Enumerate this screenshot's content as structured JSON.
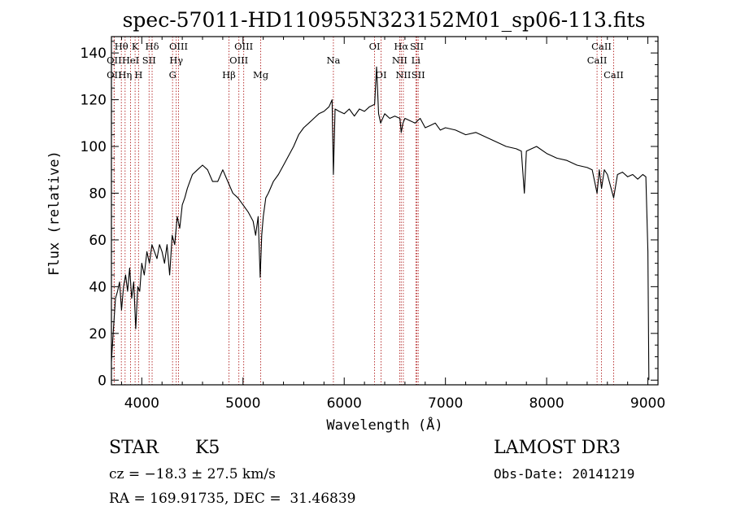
{
  "chart_data": {
    "type": "line",
    "title": "spec-57011-HD110955N323152M01_sp06-113.fits",
    "xlabel": "Wavelength (Å)",
    "ylabel": "Flux (relative)",
    "xlim": [
      3700,
      9100
    ],
    "ylim": [
      -2,
      147
    ],
    "xticks": [
      4000,
      5000,
      6000,
      7000,
      8000,
      9000
    ],
    "yticks": [
      0,
      20,
      40,
      60,
      80,
      100,
      120,
      140
    ],
    "grid": false,
    "legend": "none",
    "line_color": "#000000",
    "marker_color": "#b22222",
    "series": [
      {
        "x": [
          3700,
          3720,
          3740,
          3760,
          3780,
          3800,
          3820,
          3840,
          3860,
          3880,
          3900,
          3920,
          3940,
          3960,
          3980,
          4000,
          4025,
          4050,
          4075,
          4100,
          4125,
          4150,
          4175,
          4200,
          4225,
          4250,
          4275,
          4300,
          4325,
          4350,
          4375,
          4400,
          4425,
          4450,
          4475,
          4500,
          4550,
          4600,
          4650,
          4700,
          4750,
          4800,
          4850,
          4900,
          4950,
          5000,
          5050,
          5100,
          5125,
          5150,
          5170,
          5185,
          5200,
          5225,
          5250,
          5300,
          5350,
          5400,
          5450,
          5500,
          5550,
          5600,
          5650,
          5700,
          5750,
          5800,
          5850,
          5880,
          5893,
          5910,
          5950,
          6000,
          6050,
          6100,
          6150,
          6200,
          6250,
          6300,
          6320,
          6340,
          6360,
          6400,
          6450,
          6500,
          6550,
          6563,
          6580,
          6600,
          6650,
          6700,
          6750,
          6800,
          6850,
          6900,
          6950,
          7000,
          7100,
          7200,
          7300,
          7400,
          7500,
          7600,
          7700,
          7750,
          7780,
          7800,
          7850,
          7900,
          8000,
          8100,
          8200,
          8300,
          8400,
          8450,
          8498,
          8520,
          8542,
          8570,
          8600,
          8662,
          8700,
          8750,
          8800,
          8850,
          8900,
          8950,
          8980,
          9000,
          9010
        ],
        "y": [
          8,
          22,
          35,
          38,
          42,
          30,
          40,
          45,
          38,
          48,
          35,
          42,
          22,
          40,
          38,
          50,
          45,
          55,
          50,
          58,
          55,
          52,
          58,
          55,
          50,
          58,
          45,
          62,
          58,
          70,
          65,
          75,
          78,
          82,
          85,
          88,
          90,
          92,
          90,
          85,
          85,
          90,
          85,
          80,
          78,
          75,
          72,
          68,
          62,
          70,
          44,
          62,
          70,
          78,
          80,
          85,
          88,
          92,
          96,
          100,
          105,
          108,
          110,
          112,
          114,
          115,
          117,
          120,
          88,
          116,
          115,
          114,
          116,
          113,
          116,
          115,
          117,
          118,
          134,
          114,
          110,
          114,
          112,
          113,
          112,
          106,
          110,
          112,
          111,
          110,
          112,
          108,
          109,
          110,
          107,
          108,
          107,
          105,
          106,
          104,
          102,
          100,
          99,
          98,
          80,
          98,
          99,
          100,
          97,
          95,
          94,
          92,
          91,
          90,
          80,
          90,
          82,
          90,
          88,
          78,
          88,
          89,
          87,
          88,
          86,
          88,
          87,
          55,
          0
        ]
      }
    ],
    "lines": [
      {
        "label": "Hθ",
        "x": 3798,
        "row": 1
      },
      {
        "label": "OII",
        "x": 3727,
        "row": 2
      },
      {
        "label": "OII",
        "x": 3727,
        "row": 3
      },
      {
        "label": "K",
        "x": 3934,
        "row": 1
      },
      {
        "label": "HeI",
        "x": 3889,
        "row": 2
      },
      {
        "label": "Hη",
        "x": 3835,
        "row": 3
      },
      {
        "label": "SII",
        "x": 4072,
        "row": 2
      },
      {
        "label": "H",
        "x": 3968,
        "row": 3
      },
      {
        "label": "Hδ",
        "x": 4102,
        "row": 1
      },
      {
        "label": "OIII",
        "x": 4363,
        "row": 1
      },
      {
        "label": "Hγ",
        "x": 4340,
        "row": 2
      },
      {
        "label": "G",
        "x": 4304,
        "row": 3
      },
      {
        "label": "Hβ",
        "x": 4861,
        "row": 3
      },
      {
        "label": "OIII",
        "x": 5007,
        "row": 1
      },
      {
        "label": "OIII",
        "x": 4959,
        "row": 2
      },
      {
        "label": "Mg",
        "x": 5175,
        "row": 3
      },
      {
        "label": "Na",
        "x": 5893,
        "row": 2
      },
      {
        "label": "OI",
        "x": 6300,
        "row": 1
      },
      {
        "label": "OI",
        "x": 6364,
        "row": 3
      },
      {
        "label": "Hα",
        "x": 6563,
        "row": 1
      },
      {
        "label": "NII",
        "x": 6548,
        "row": 2
      },
      {
        "label": "NII",
        "x": 6584,
        "row": 3
      },
      {
        "label": "SII",
        "x": 6717,
        "row": 1
      },
      {
        "label": "Li",
        "x": 6708,
        "row": 2
      },
      {
        "label": "SII",
        "x": 6731,
        "row": 3
      },
      {
        "label": "CaII",
        "x": 8542,
        "row": 1
      },
      {
        "label": "CaII",
        "x": 8498,
        "row": 2
      },
      {
        "label": "CaII",
        "x": 8662,
        "row": 3
      }
    ]
  },
  "info": {
    "class": "STAR",
    "subclass": "K5",
    "survey": "LAMOST DR3",
    "cz": "cz = −18.3 ± 27.5 km/s",
    "obs_date": "Obs-Date: 20141219",
    "radec": "RA = 169.91735, DEC =  31.46839"
  }
}
